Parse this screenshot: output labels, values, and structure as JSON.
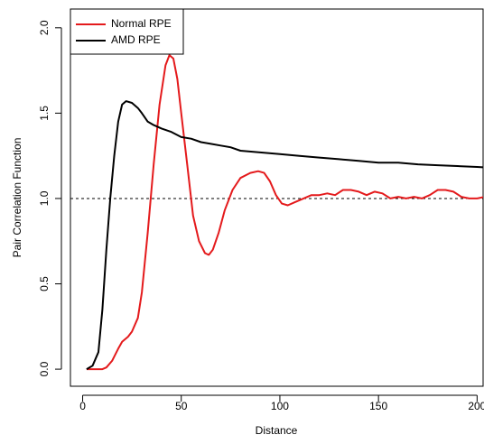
{
  "chart_data": {
    "type": "line",
    "xlabel": "Distance",
    "ylabel": "Pair Correlation Function",
    "xlim": [
      -6.2,
      203.5
    ],
    "ylim": [
      -0.1,
      2.11
    ],
    "xticks": [
      0,
      50,
      100,
      150,
      200
    ],
    "yticks": [
      {
        "value": 0,
        "label": "0.0"
      },
      0.5,
      {
        "value": 1,
        "label": "1.0"
      },
      1.5,
      {
        "value": 2,
        "label": "2.0"
      }
    ],
    "hline": 1,
    "legend": "top-left",
    "series": [
      {
        "name": "Normal RPE",
        "color": "#e41a1c",
        "x": [
          2,
          6,
          10,
          12,
          15,
          18,
          20,
          23,
          25,
          28,
          30,
          33,
          36,
          39,
          42,
          44,
          46,
          48,
          50,
          53,
          56,
          59,
          62,
          64,
          66,
          69,
          72,
          76,
          80,
          85,
          89,
          92,
          95,
          98,
          101,
          104,
          108,
          112,
          116,
          120,
          124,
          128,
          132,
          136,
          140,
          144,
          148,
          152,
          156,
          160,
          164,
          168,
          172,
          176,
          180,
          184,
          188,
          192,
          196,
          200,
          204,
          208
        ],
        "values": [
          0,
          0,
          0,
          0.01,
          0.05,
          0.12,
          0.16,
          0.19,
          0.22,
          0.3,
          0.45,
          0.8,
          1.2,
          1.55,
          1.78,
          1.84,
          1.82,
          1.7,
          1.5,
          1.2,
          0.9,
          0.75,
          0.68,
          0.67,
          0.7,
          0.8,
          0.93,
          1.05,
          1.12,
          1.15,
          1.16,
          1.15,
          1.1,
          1.02,
          0.97,
          0.96,
          0.98,
          1.0,
          1.02,
          1.02,
          1.03,
          1.02,
          1.05,
          1.05,
          1.04,
          1.02,
          1.04,
          1.03,
          1.0,
          1.01,
          1.0,
          1.01,
          1.0,
          1.02,
          1.05,
          1.05,
          1.04,
          1.01,
          1.0,
          1.0,
          1.01,
          1.0
        ]
      },
      {
        "name": "AMD RPE",
        "color": "#000000",
        "x": [
          2,
          5,
          8,
          10,
          12,
          14,
          16,
          18,
          20,
          22,
          25,
          28,
          30,
          33,
          36,
          40,
          45,
          50,
          55,
          60,
          65,
          70,
          75,
          80,
          90,
          100,
          110,
          120,
          130,
          140,
          150,
          160,
          170,
          180,
          190,
          200,
          208
        ],
        "values": [
          0,
          0.02,
          0.1,
          0.35,
          0.7,
          1.0,
          1.25,
          1.45,
          1.55,
          1.57,
          1.56,
          1.53,
          1.5,
          1.45,
          1.43,
          1.41,
          1.39,
          1.36,
          1.35,
          1.33,
          1.32,
          1.31,
          1.3,
          1.28,
          1.27,
          1.26,
          1.25,
          1.24,
          1.23,
          1.22,
          1.21,
          1.21,
          1.2,
          1.195,
          1.19,
          1.185,
          1.18
        ]
      }
    ]
  }
}
